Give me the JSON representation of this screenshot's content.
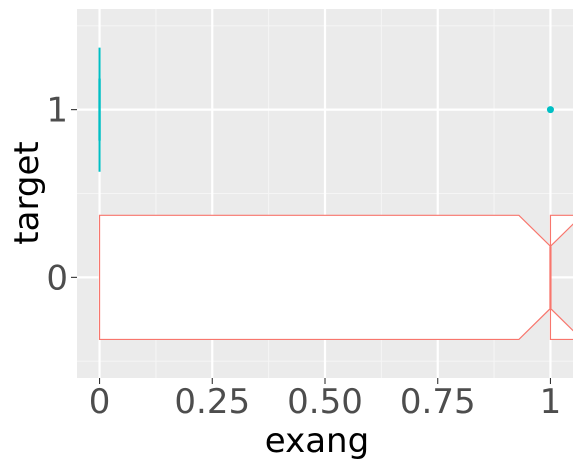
{
  "chart_data": {
    "type": "boxplot",
    "orientation": "horizontal",
    "xlabel": "exang",
    "ylabel": "target",
    "xlim": [
      -0.05,
      1.05
    ],
    "ylim": [
      -0.6,
      1.6
    ],
    "x_ticks": [
      0,
      0.25,
      0.5,
      0.75,
      1
    ],
    "x_tick_labels": [
      "0",
      "0.25",
      "0.50",
      "0.75",
      "1"
    ],
    "y_ticks": [
      0,
      1
    ],
    "y_tick_labels": [
      "0",
      "1"
    ],
    "grid": true,
    "legend": "none",
    "boxes": [
      {
        "category": "0",
        "y": 0,
        "color": "#F8766D",
        "fill": "#FFFFFF",
        "notched": true,
        "q1": 0,
        "median": 1,
        "q3": 1,
        "whisker_low": 0,
        "whisker_high": 1,
        "notch_low": 0.93,
        "notch_high": 1.07,
        "box_half_height": 0.37
      },
      {
        "category": "1",
        "y": 1,
        "color": "#00BFC4",
        "fill": "#FFFFFF",
        "notched": true,
        "q1": 0,
        "median": 0,
        "q3": 0,
        "whisker_low": 0,
        "whisker_high": 0,
        "box_half_height": 0.37,
        "outliers": [
          1
        ]
      }
    ]
  },
  "colors": {
    "panel_background": "#EBEBEB",
    "grid_major": "#FFFFFF",
    "grid_minor": "#F5F5F5",
    "tick_text": "#4D4D4D",
    "axis_title": "#000000"
  }
}
